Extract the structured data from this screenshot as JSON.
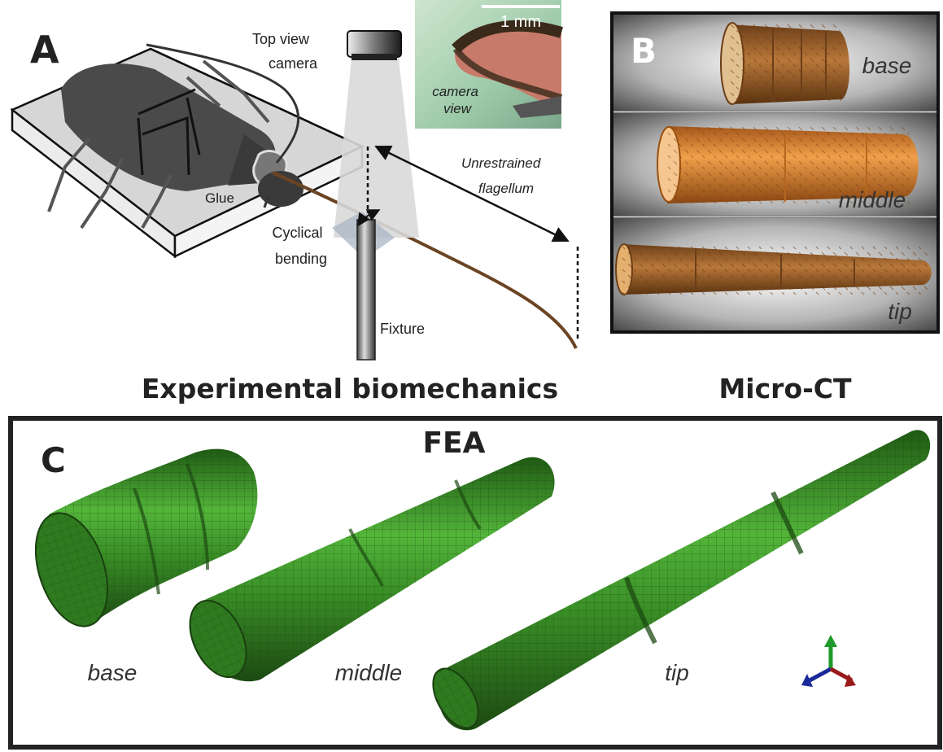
{
  "panel_a": {
    "letter": "A",
    "top_view_camera": [
      "Top view",
      "camera"
    ],
    "scale_bar": "1 mm",
    "camera_view": [
      "camera",
      "view"
    ],
    "unrestrained_flagellum": [
      "Unrestrained",
      "flagellum"
    ],
    "glue": "Glue",
    "cyclical_bending": [
      "Cyclical",
      "bending"
    ],
    "fixture": "Fixture",
    "caption": "Experimental biomechanics"
  },
  "panel_b": {
    "letter": "B",
    "labels": [
      "base",
      "middle",
      "tip"
    ],
    "caption": "Micro-CT"
  },
  "panel_c": {
    "letter": "C",
    "title": "FEA",
    "labels": [
      "base",
      "middle",
      "tip"
    ]
  },
  "colors": {
    "fea_green": "#3f9a2a",
    "ct_orange": "#e08a2e",
    "ct_brown": "#a8682e",
    "flagellum": "#6b4423"
  }
}
